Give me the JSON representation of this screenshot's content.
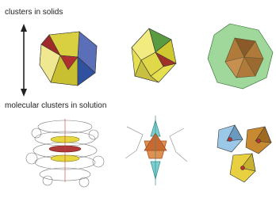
{
  "labels": {
    "top": "clusters in solids",
    "bottom": "molecular clusters in solution"
  }
}
